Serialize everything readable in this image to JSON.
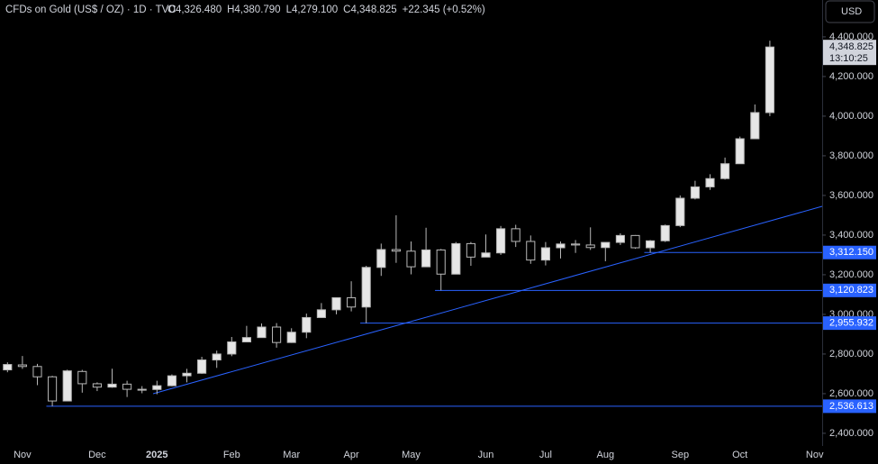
{
  "chart_data": {
    "type": "candlestick",
    "title": "CFDs on Gold (US$ / OZ) · 1D · TVC",
    "ohlc_header": [
      "O4,326.480",
      "H4,380.790",
      "L4,279.100",
      "C4,348.825"
    ],
    "change": "+22.345 (+0.52%)",
    "currency": "USD",
    "categories": [
      null,
      "Nov",
      null,
      null,
      null,
      null,
      "Dec",
      null,
      null,
      null,
      "2025",
      null,
      null,
      null,
      null,
      "Feb",
      null,
      null,
      null,
      "Mar",
      null,
      null,
      null,
      "Apr",
      null,
      null,
      null,
      "May",
      null,
      null,
      null,
      null,
      "Jun",
      null,
      null,
      null,
      "Jul",
      null,
      null,
      null,
      "Aug",
      null,
      null,
      null,
      null,
      "Sep",
      null,
      null,
      null,
      "Oct",
      null,
      null,
      null,
      null,
      "Nov"
    ],
    "open": [
      2720,
      2745,
      2737,
      2685,
      2563,
      2712,
      2650,
      2633,
      2648,
      2622,
      2621,
      2640,
      2690,
      2703,
      2770,
      2800,
      2861,
      2883,
      2936,
      2858,
      2910,
      2984,
      3023,
      3084,
      3037,
      3237,
      3327,
      3319,
      3240,
      3325,
      3203,
      3357,
      3289,
      3310,
      3432,
      3368,
      3274,
      3336,
      3355,
      3350,
      3337,
      3363,
      3398,
      3336,
      3371,
      3448,
      3586,
      3643,
      3685,
      3760,
      3886,
      4018,
      null,
      null,
      null
    ],
    "high": [
      2758,
      2790,
      2750,
      2690,
      2721,
      2720,
      2657,
      2726,
      2665,
      2638,
      2665,
      2697,
      2725,
      2786,
      2817,
      2886,
      2942,
      2954,
      2956,
      2930,
      3004,
      3057,
      3086,
      3167,
      3245,
      3357,
      3500,
      3368,
      3437,
      3330,
      3365,
      3365,
      3403,
      3446,
      3452,
      3398,
      3365,
      3368,
      3375,
      3439,
      3363,
      3409,
      3400,
      3375,
      3453,
      3600,
      3674,
      3707,
      3791,
      3897,
      4059,
      4380.79,
      null,
      null,
      null
    ],
    "low": [
      2708,
      2725,
      2643,
      2536.613,
      2563,
      2605,
      2613,
      2630,
      2583,
      2602,
      2597,
      2637,
      2657,
      2700,
      2730,
      2789,
      2860,
      2883,
      2832,
      2856,
      2880,
      2982,
      3000,
      3015,
      2955.932,
      3194,
      3260,
      3202,
      3240,
      3120.823,
      3203,
      3245,
      3289,
      3300,
      3340,
      3255,
      3247,
      3282,
      3310,
      3325,
      3268,
      3350,
      3331,
      3312.15,
      3365,
      3440,
      3580,
      3628,
      3680,
      3760,
      3886,
      4000,
      null,
      null,
      null
    ],
    "close": [
      2747,
      2737,
      2685,
      2563,
      2715,
      2650,
      2633,
      2648,
      2622,
      2621,
      2640,
      2690,
      2703,
      2770,
      2800,
      2861,
      2883,
      2936,
      2858,
      2910,
      2984,
      3023,
      3084,
      3037,
      3237,
      3327,
      3319,
      3240,
      3325,
      3203,
      3357,
      3289,
      3310,
      3432,
      3368,
      3274,
      3336,
      3355,
      3350,
      3337,
      3363,
      3398,
      3336,
      3371,
      3448,
      3586,
      3643,
      3685,
      3760,
      3886,
      4018,
      4348.825,
      null,
      null,
      null
    ],
    "up_color": "#e6e6e6",
    "down_color": "#000000",
    "wick_color": "#b8b8b8",
    "level_color": "#2962ff",
    "levels": [
      {
        "value": 3312.15,
        "label": "3,312.150"
      },
      {
        "value": 3120.823,
        "label": "3,120.823"
      },
      {
        "value": 2955.932,
        "label": "2,955.932"
      },
      {
        "value": 2536.613,
        "label": "2,536.613"
      }
    ],
    "last": {
      "value": 4348.825,
      "label": "4,348.825",
      "countdown": "13:10:25"
    },
    "ylim": [
      2336,
      4586
    ],
    "yticks": [
      {
        "value": 2400,
        "label": "2,400.000"
      },
      {
        "value": 2600,
        "label": "2,600.000"
      },
      {
        "value": 2800,
        "label": "2,800.000"
      },
      {
        "value": 3000,
        "label": "3,000.000"
      },
      {
        "value": 3200,
        "label": "3,200.000"
      },
      {
        "value": 3400,
        "label": "3,400.000"
      },
      {
        "value": 3600,
        "label": "3,600.000"
      },
      {
        "value": 3800,
        "label": "3,800.000"
      },
      {
        "value": 4000,
        "label": "4,000.000"
      },
      {
        "value": 4200,
        "label": "4,200.000"
      },
      {
        "value": 4400,
        "label": "4,400.000"
      }
    ],
    "grid": false
  }
}
